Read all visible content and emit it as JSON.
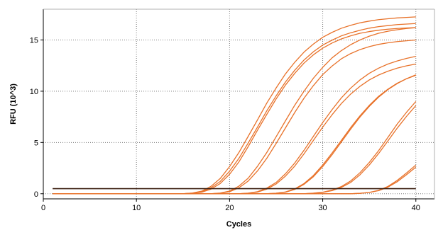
{
  "chart_data": {
    "type": "line",
    "title": "",
    "xlabel": "Cycles",
    "ylabel": "RFU (10^3)",
    "xlim": [
      0,
      42
    ],
    "ylim": [
      -0.5,
      18
    ],
    "x_ticks": [
      0,
      10,
      20,
      30,
      40
    ],
    "y_ticks": [
      0,
      5,
      10,
      15
    ],
    "grid": true,
    "grid_style": "dotted",
    "legend": "none",
    "colors": {
      "curve": "#e8722a",
      "threshold": "#3a1e10",
      "grid": "#7a7a7a",
      "axis": "#000000"
    },
    "x_range_shown": [
      1,
      40
    ],
    "threshold": 0.5,
    "series": [
      {
        "values": [
          0,
          0,
          0,
          0,
          0,
          0,
          0,
          0,
          0,
          0,
          0,
          0,
          0,
          0,
          0,
          0.07,
          0.25,
          0.72,
          1.49,
          2.65,
          4.02,
          5.6,
          7.21,
          8.85,
          10.32,
          11.69,
          12.83,
          13.82,
          14.6,
          15.26,
          15.74,
          16.14,
          16.43,
          16.67,
          16.84,
          16.98,
          17.07,
          17.15,
          17.2,
          17.25
        ]
      },
      {
        "values": [
          0,
          0,
          0,
          0,
          0,
          0,
          0,
          0,
          0,
          0,
          0,
          0,
          0,
          0,
          0,
          0.06,
          0.2,
          0.58,
          1.2,
          2.2,
          3.45,
          4.95,
          6.5,
          8.1,
          9.55,
          10.9,
          12.05,
          13.05,
          13.85,
          14.5,
          14.98,
          15.4,
          15.7,
          15.95,
          16.15,
          16.3,
          16.4,
          16.5,
          16.55,
          16.6
        ]
      },
      {
        "values": [
          0,
          0,
          0,
          0,
          0,
          0,
          0,
          0,
          0,
          0,
          0,
          0,
          0,
          0,
          0,
          0.05,
          0.15,
          0.45,
          1.0,
          1.9,
          3.1,
          4.6,
          6.2,
          7.75,
          9.25,
          10.6,
          11.75,
          12.75,
          13.55,
          14.2,
          14.7,
          15.1,
          15.4,
          15.65,
          15.82,
          15.95,
          16.05,
          16.12,
          16.17,
          16.2
        ]
      },
      {
        "values": [
          0,
          0,
          0,
          0,
          0,
          0,
          0,
          0,
          0,
          0,
          0,
          0,
          0,
          0,
          0,
          0,
          0,
          0,
          0.07,
          0.26,
          0.74,
          1.52,
          2.68,
          4.03,
          5.56,
          7.11,
          8.64,
          10.01,
          11.27,
          12.33,
          13.25,
          13.96,
          14.54,
          15.0,
          15.37,
          15.65,
          15.85,
          16.0,
          16.12,
          16.2
        ]
      },
      {
        "values": [
          0,
          0,
          0,
          0,
          0,
          0,
          0,
          0,
          0,
          0,
          0,
          0,
          0,
          0,
          0,
          0,
          0,
          0,
          0.05,
          0.2,
          0.58,
          1.24,
          2.23,
          3.46,
          4.91,
          6.42,
          7.93,
          9.33,
          10.55,
          11.62,
          12.45,
          13.16,
          13.67,
          14.06,
          14.35,
          14.57,
          14.72,
          14.84,
          14.92,
          15.0
        ]
      },
      {
        "values": [
          0,
          0,
          0,
          0,
          0,
          0,
          0,
          0,
          0,
          0,
          0,
          0,
          0,
          0,
          0,
          0,
          0,
          0,
          0,
          0,
          0,
          0.06,
          0.2,
          0.55,
          1.1,
          1.95,
          3.0,
          4.25,
          5.6,
          6.95,
          8.2,
          9.35,
          10.3,
          11.1,
          11.75,
          12.25,
          12.65,
          12.95,
          13.2,
          13.4
        ]
      },
      {
        "values": [
          0,
          0,
          0,
          0,
          0,
          0,
          0,
          0,
          0,
          0,
          0,
          0,
          0,
          0,
          0,
          0,
          0,
          0,
          0,
          0,
          0,
          0.05,
          0.16,
          0.45,
          0.95,
          1.72,
          2.7,
          3.9,
          5.2,
          6.5,
          7.7,
          8.8,
          9.72,
          10.48,
          11.1,
          11.58,
          11.95,
          12.25,
          12.48,
          12.65
        ]
      },
      {
        "values": [
          0,
          0,
          0,
          0,
          0,
          0,
          0,
          0,
          0,
          0,
          0,
          0,
          0,
          0,
          0,
          0,
          0,
          0,
          0,
          0,
          0,
          0,
          0,
          0,
          0.05,
          0.17,
          0.47,
          1.0,
          1.78,
          2.8,
          3.97,
          5.2,
          6.45,
          7.6,
          8.62,
          9.5,
          10.2,
          10.78,
          11.22,
          11.55
        ]
      },
      {
        "values": [
          0,
          0,
          0,
          0,
          0,
          0,
          0,
          0,
          0,
          0,
          0,
          0,
          0,
          0,
          0,
          0,
          0,
          0,
          0,
          0,
          0,
          0,
          0,
          0,
          0.05,
          0.15,
          0.42,
          0.92,
          1.66,
          2.65,
          3.8,
          5.05,
          6.3,
          7.48,
          8.52,
          9.42,
          10.16,
          10.75,
          11.22,
          11.6
        ]
      },
      {
        "values": [
          0,
          0,
          0,
          0,
          0,
          0,
          0,
          0,
          0,
          0,
          0,
          0,
          0,
          0,
          0,
          0,
          0,
          0,
          0,
          0,
          0,
          0,
          0,
          0,
          0,
          0,
          0,
          0,
          0.06,
          0.15,
          0.35,
          0.7,
          1.25,
          2.05,
          3.05,
          4.2,
          5.5,
          6.8,
          7.95,
          9.0
        ]
      },
      {
        "values": [
          0,
          0,
          0,
          0,
          0,
          0,
          0,
          0,
          0,
          0,
          0,
          0,
          0,
          0,
          0,
          0,
          0,
          0,
          0,
          0,
          0,
          0,
          0,
          0,
          0,
          0,
          0,
          0,
          0.05,
          0.13,
          0.3,
          0.62,
          1.1,
          1.85,
          2.8,
          3.92,
          5.15,
          6.4,
          7.55,
          8.6
        ]
      },
      {
        "values": [
          0,
          0,
          0,
          0,
          0,
          0,
          0,
          0,
          0,
          0,
          0,
          0,
          0,
          0,
          0,
          0,
          0,
          0,
          0,
          0,
          0,
          0,
          0,
          0,
          0,
          0,
          0,
          0,
          0,
          0,
          0,
          0,
          0,
          0.04,
          0.13,
          0.33,
          0.71,
          1.3,
          2.03,
          2.8
        ]
      },
      {
        "values": [
          0,
          0,
          0,
          0,
          0,
          0,
          0,
          0,
          0,
          0,
          0,
          0,
          0,
          0,
          0,
          0,
          0,
          0,
          0,
          0,
          0,
          0,
          0,
          0,
          0,
          0,
          0,
          0,
          0,
          0,
          0,
          0,
          0,
          0.04,
          0.12,
          0.3,
          0.64,
          1.17,
          1.86,
          2.6
        ]
      }
    ]
  }
}
